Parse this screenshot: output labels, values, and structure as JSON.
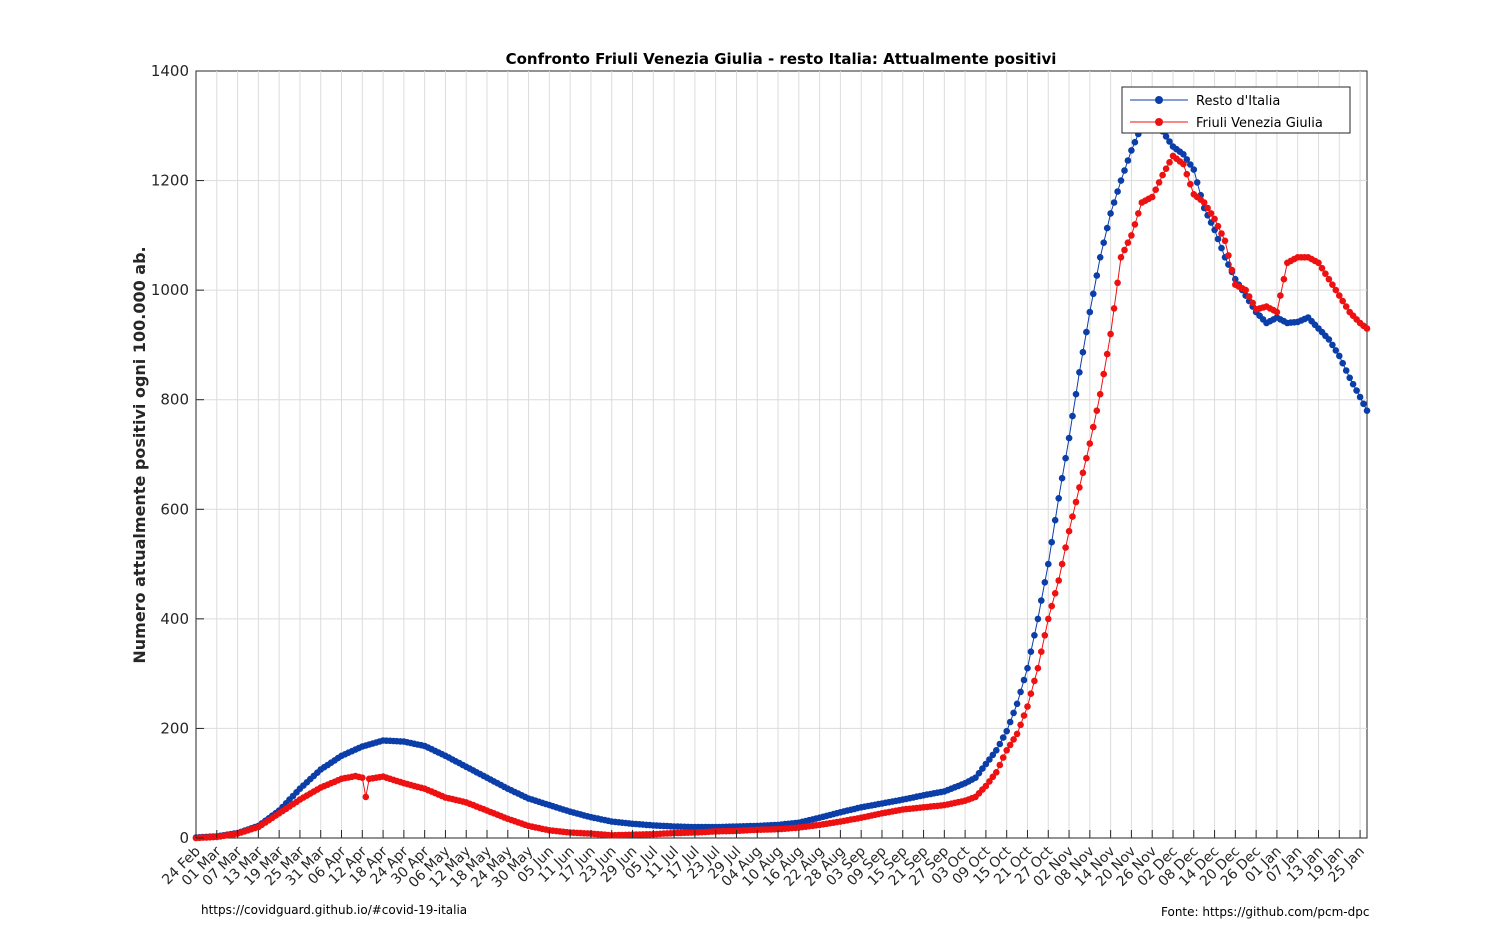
{
  "chart_data": {
    "type": "line",
    "title": "Confronto Friuli Venezia Giulia - resto Italia: Attualmente positivi",
    "xlabel": "",
    "ylabel": "Numero attualmente positivi ogni 100.000 ab.",
    "ylim": [
      0,
      1400
    ],
    "yticks": [
      0,
      200,
      400,
      600,
      800,
      1000,
      1200,
      1400
    ],
    "x_range": [
      "2020-02-24",
      "2021-01-27"
    ],
    "xtick_labels": [
      "24 Feb",
      "01 Mar",
      "07 Mar",
      "13 Mar",
      "19 Mar",
      "25 Mar",
      "31 Mar",
      "06 Apr",
      "12 Apr",
      "18 Apr",
      "24 Apr",
      "30 Apr",
      "06 May",
      "12 May",
      "18 May",
      "24 May",
      "30 May",
      "05 Jun",
      "11 Jun",
      "17 Jun",
      "23 Jun",
      "29 Jun",
      "05 Jul",
      "11 Jul",
      "17 Jul",
      "23 Jul",
      "29 Jul",
      "04 Aug",
      "10 Aug",
      "16 Aug",
      "22 Aug",
      "28 Aug",
      "03 Sep",
      "09 Sep",
      "15 Sep",
      "21 Sep",
      "27 Sep",
      "03 Oct",
      "09 Oct",
      "15 Oct",
      "21 Oct",
      "27 Oct",
      "02 Nov",
      "08 Nov",
      "14 Nov",
      "20 Nov",
      "26 Nov",
      "02 Dec",
      "08 Dec",
      "14 Dec",
      "20 Dec",
      "26 Dec",
      "01 Jan",
      "07 Jan",
      "13 Jan",
      "19 Jan",
      "25 Jan"
    ],
    "grid": true,
    "legend_position": "top-right",
    "series": [
      {
        "name": "Resto d'Italia",
        "color": "#0b3ea8",
        "points": [
          [
            "2020-02-24",
            1
          ],
          [
            "2020-03-01",
            3
          ],
          [
            "2020-03-07",
            9
          ],
          [
            "2020-03-13",
            22
          ],
          [
            "2020-03-19",
            50
          ],
          [
            "2020-03-25",
            90
          ],
          [
            "2020-03-31",
            125
          ],
          [
            "2020-04-06",
            150
          ],
          [
            "2020-04-12",
            167
          ],
          [
            "2020-04-18",
            178
          ],
          [
            "2020-04-24",
            176
          ],
          [
            "2020-04-30",
            168
          ],
          [
            "2020-05-06",
            150
          ],
          [
            "2020-05-12",
            130
          ],
          [
            "2020-05-18",
            110
          ],
          [
            "2020-05-24",
            90
          ],
          [
            "2020-05-30",
            72
          ],
          [
            "2020-06-05",
            60
          ],
          [
            "2020-06-11",
            48
          ],
          [
            "2020-06-17",
            38
          ],
          [
            "2020-06-23",
            30
          ],
          [
            "2020-06-29",
            26
          ],
          [
            "2020-07-05",
            23
          ],
          [
            "2020-07-11",
            21
          ],
          [
            "2020-07-17",
            20
          ],
          [
            "2020-07-23",
            20
          ],
          [
            "2020-07-29",
            21
          ],
          [
            "2020-08-04",
            22
          ],
          [
            "2020-08-10",
            24
          ],
          [
            "2020-08-16",
            28
          ],
          [
            "2020-08-22",
            37
          ],
          [
            "2020-08-28",
            47
          ],
          [
            "2020-09-03",
            56
          ],
          [
            "2020-09-09",
            63
          ],
          [
            "2020-09-15",
            70
          ],
          [
            "2020-09-21",
            78
          ],
          [
            "2020-09-27",
            85
          ],
          [
            "2020-10-03",
            100
          ],
          [
            "2020-10-06",
            110
          ],
          [
            "2020-10-09",
            135
          ],
          [
            "2020-10-12",
            160
          ],
          [
            "2020-10-15",
            195
          ],
          [
            "2020-10-18",
            245
          ],
          [
            "2020-10-21",
            310
          ],
          [
            "2020-10-24",
            400
          ],
          [
            "2020-10-27",
            500
          ],
          [
            "2020-10-30",
            620
          ],
          [
            "2020-11-02",
            730
          ],
          [
            "2020-11-05",
            850
          ],
          [
            "2020-11-08",
            960
          ],
          [
            "2020-11-11",
            1060
          ],
          [
            "2020-11-14",
            1140
          ],
          [
            "2020-11-17",
            1200
          ],
          [
            "2020-11-20",
            1255
          ],
          [
            "2020-11-23",
            1300
          ],
          [
            "2020-11-26",
            1310
          ],
          [
            "2020-11-29",
            1290
          ],
          [
            "2020-12-02",
            1262
          ],
          [
            "2020-12-05",
            1248
          ],
          [
            "2020-12-08",
            1220
          ],
          [
            "2020-12-11",
            1150
          ],
          [
            "2020-12-14",
            1110
          ],
          [
            "2020-12-17",
            1060
          ],
          [
            "2020-12-20",
            1020
          ],
          [
            "2020-12-23",
            990
          ],
          [
            "2020-12-26",
            960
          ],
          [
            "2020-12-29",
            940
          ],
          [
            "2021-01-01",
            950
          ],
          [
            "2021-01-04",
            940
          ],
          [
            "2021-01-07",
            942
          ],
          [
            "2021-01-10",
            950
          ],
          [
            "2021-01-13",
            930
          ],
          [
            "2021-01-16",
            910
          ],
          [
            "2021-01-19",
            880
          ],
          [
            "2021-01-22",
            840
          ],
          [
            "2021-01-25",
            805
          ],
          [
            "2021-01-27",
            780
          ]
        ]
      },
      {
        "name": "Friuli Venezia Giulia",
        "color": "#ee1111",
        "points": [
          [
            "2020-02-24",
            0
          ],
          [
            "2020-03-01",
            2
          ],
          [
            "2020-03-07",
            8
          ],
          [
            "2020-03-13",
            20
          ],
          [
            "2020-03-19",
            45
          ],
          [
            "2020-03-25",
            70
          ],
          [
            "2020-03-31",
            92
          ],
          [
            "2020-04-06",
            108
          ],
          [
            "2020-04-10",
            113
          ],
          [
            "2020-04-12",
            110
          ],
          [
            "2020-04-13",
            75
          ],
          [
            "2020-04-14",
            108
          ],
          [
            "2020-04-18",
            112
          ],
          [
            "2020-04-24",
            100
          ],
          [
            "2020-04-30",
            90
          ],
          [
            "2020-05-06",
            74
          ],
          [
            "2020-05-12",
            65
          ],
          [
            "2020-05-18",
            50
          ],
          [
            "2020-05-24",
            35
          ],
          [
            "2020-05-30",
            22
          ],
          [
            "2020-06-05",
            14
          ],
          [
            "2020-06-11",
            10
          ],
          [
            "2020-06-17",
            8
          ],
          [
            "2020-06-23",
            5
          ],
          [
            "2020-06-29",
            6
          ],
          [
            "2020-07-05",
            7
          ],
          [
            "2020-07-11",
            9
          ],
          [
            "2020-07-17",
            10
          ],
          [
            "2020-07-23",
            12
          ],
          [
            "2020-07-29",
            13
          ],
          [
            "2020-08-04",
            15
          ],
          [
            "2020-08-10",
            16
          ],
          [
            "2020-08-16",
            19
          ],
          [
            "2020-08-22",
            24
          ],
          [
            "2020-08-28",
            30
          ],
          [
            "2020-09-03",
            37
          ],
          [
            "2020-09-09",
            45
          ],
          [
            "2020-09-15",
            52
          ],
          [
            "2020-09-21",
            56
          ],
          [
            "2020-09-27",
            60
          ],
          [
            "2020-10-03",
            68
          ],
          [
            "2020-10-06",
            75
          ],
          [
            "2020-10-09",
            95
          ],
          [
            "2020-10-12",
            120
          ],
          [
            "2020-10-15",
            160
          ],
          [
            "2020-10-18",
            190
          ],
          [
            "2020-10-21",
            240
          ],
          [
            "2020-10-24",
            310
          ],
          [
            "2020-10-27",
            400
          ],
          [
            "2020-10-30",
            470
          ],
          [
            "2020-11-02",
            560
          ],
          [
            "2020-11-05",
            640
          ],
          [
            "2020-11-08",
            720
          ],
          [
            "2020-11-11",
            810
          ],
          [
            "2020-11-14",
            920
          ],
          [
            "2020-11-17",
            1060
          ],
          [
            "2020-11-20",
            1100
          ],
          [
            "2020-11-23",
            1160
          ],
          [
            "2020-11-26",
            1170
          ],
          [
            "2020-11-29",
            1210
          ],
          [
            "2020-12-02",
            1245
          ],
          [
            "2020-12-05",
            1230
          ],
          [
            "2020-12-08",
            1175
          ],
          [
            "2020-12-11",
            1160
          ],
          [
            "2020-12-14",
            1130
          ],
          [
            "2020-12-17",
            1090
          ],
          [
            "2020-12-20",
            1010
          ],
          [
            "2020-12-23",
            1000
          ],
          [
            "2020-12-26",
            965
          ],
          [
            "2020-12-29",
            970
          ],
          [
            "2021-01-01",
            960
          ],
          [
            "2021-01-04",
            1050
          ],
          [
            "2021-01-07",
            1060
          ],
          [
            "2021-01-10",
            1060
          ],
          [
            "2021-01-13",
            1050
          ],
          [
            "2021-01-16",
            1020
          ],
          [
            "2021-01-19",
            990
          ],
          [
            "2021-01-22",
            960
          ],
          [
            "2021-01-25",
            940
          ],
          [
            "2021-01-27",
            930
          ]
        ]
      }
    ]
  },
  "footer": {
    "source_link": "https://covidguard.github.io/#covid-19-italia",
    "data_source": "Fonte: https://github.com/pcm-dpc"
  }
}
